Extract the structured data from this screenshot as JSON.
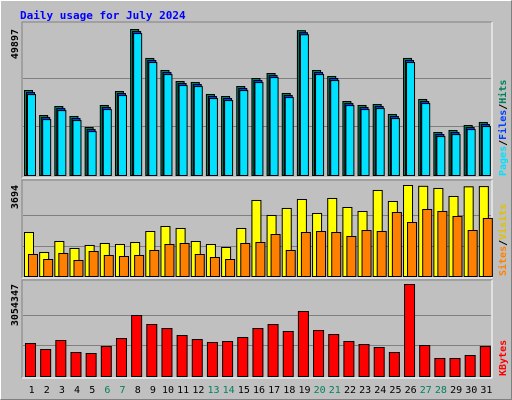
{
  "chart_data": [
    {
      "type": "bar",
      "title": "Daily usage for July 2024",
      "legend_separator": "/",
      "ylim": [
        0,
        49897
      ],
      "yticks": [
        49897
      ],
      "series": [
        {
          "name": "Hits",
          "color": "#00805c",
          "values": [
            29050,
            20500,
            23580,
            20170,
            16400,
            23930,
            28710,
            49897,
            40000,
            35890,
            32130,
            31790,
            27690,
            27000,
            30420,
            33150,
            34860,
            28030,
            49500,
            35890,
            33840,
            25290,
            23930,
            24270,
            20850,
            40000,
            25980,
            14700,
            15380,
            17090,
            18120
          ]
        },
        {
          "name": "Files",
          "color": "#0040ff",
          "values": [
            28350,
            19800,
            22880,
            19470,
            15700,
            23230,
            28010,
            49197,
            39300,
            35190,
            31430,
            31090,
            26990,
            26300,
            29720,
            32450,
            34160,
            27330,
            48800,
            35190,
            33140,
            24590,
            23230,
            23570,
            20150,
            39300,
            25280,
            14000,
            14680,
            16390,
            17420
          ]
        },
        {
          "name": "Pages",
          "color": "#00e0ff",
          "values": [
            27650,
            19100,
            22180,
            18770,
            15000,
            22530,
            27310,
            48497,
            38600,
            34490,
            30730,
            30390,
            26290,
            25600,
            29020,
            31750,
            33460,
            26630,
            48100,
            34490,
            32440,
            23890,
            22530,
            22870,
            19450,
            38600,
            24580,
            13300,
            13980,
            15690,
            16720
          ]
        }
      ]
    },
    {
      "type": "bar",
      "legend_separator": "/",
      "ylim": [
        0,
        3694
      ],
      "yticks": [
        3694
      ],
      "series": [
        {
          "name": "Visits",
          "color": "#ffff00",
          "values": [
            1786,
            975,
            1421,
            1137,
            1259,
            1340,
            1299,
            1380,
            1827,
            2030,
            1949,
            1421,
            1299,
            1177,
            1949,
            3086,
            2477,
            2761,
            3126,
            2558,
            3167,
            2801,
            2639,
            3492,
            3045,
            3694,
            3660,
            3573,
            3248,
            3640,
            3650
          ]
        },
        {
          "name": "Sites",
          "color": "#ff8000",
          "values": [
            893,
            690,
            934,
            650,
            1015,
            853,
            812,
            853,
            1056,
            1299,
            1340,
            893,
            771,
            690,
            1340,
            1380,
            1705,
            1056,
            1786,
            1827,
            1786,
            1624,
            1867,
            1827,
            2598,
            2192,
            2720,
            2639,
            2436,
            1867,
            2355
          ]
        }
      ]
    },
    {
      "type": "bar",
      "ylim": [
        0,
        3054347
      ],
      "yticks": [
        3054347
      ],
      "categories": [
        "1",
        "2",
        "3",
        "4",
        "5",
        "6",
        "7",
        "8",
        "9",
        "10",
        "11",
        "12",
        "13",
        "14",
        "15",
        "16",
        "17",
        "18",
        "19",
        "20",
        "21",
        "22",
        "23",
        "24",
        "25",
        "26",
        "27",
        "28",
        "29",
        "30",
        "31"
      ],
      "category_colors": [
        "#000000",
        "#000000",
        "#000000",
        "#000000",
        "#000000",
        "#00805c",
        "#00805c",
        "#000000",
        "#000000",
        "#000000",
        "#000000",
        "#000000",
        "#00805c",
        "#00805c",
        "#000000",
        "#000000",
        "#000000",
        "#000000",
        "#000000",
        "#00805c",
        "#00805c",
        "#000000",
        "#000000",
        "#000000",
        "#000000",
        "#000000",
        "#00805c",
        "#00805c",
        "#000000",
        "#000000",
        "#000000"
      ],
      "series": [
        {
          "name": "KBytes",
          "color": "#ff0000",
          "values": [
            1095000,
            896000,
            1195000,
            797000,
            763000,
            996000,
            1261000,
            2025000,
            1726000,
            1593000,
            1361000,
            1228000,
            1129000,
            1162000,
            1295000,
            1593000,
            1726000,
            1494000,
            2158000,
            1527000,
            1394000,
            1162000,
            1062000,
            963000,
            797000,
            3054347,
            1029000,
            598000,
            598000,
            697000,
            996000
          ]
        }
      ]
    }
  ]
}
